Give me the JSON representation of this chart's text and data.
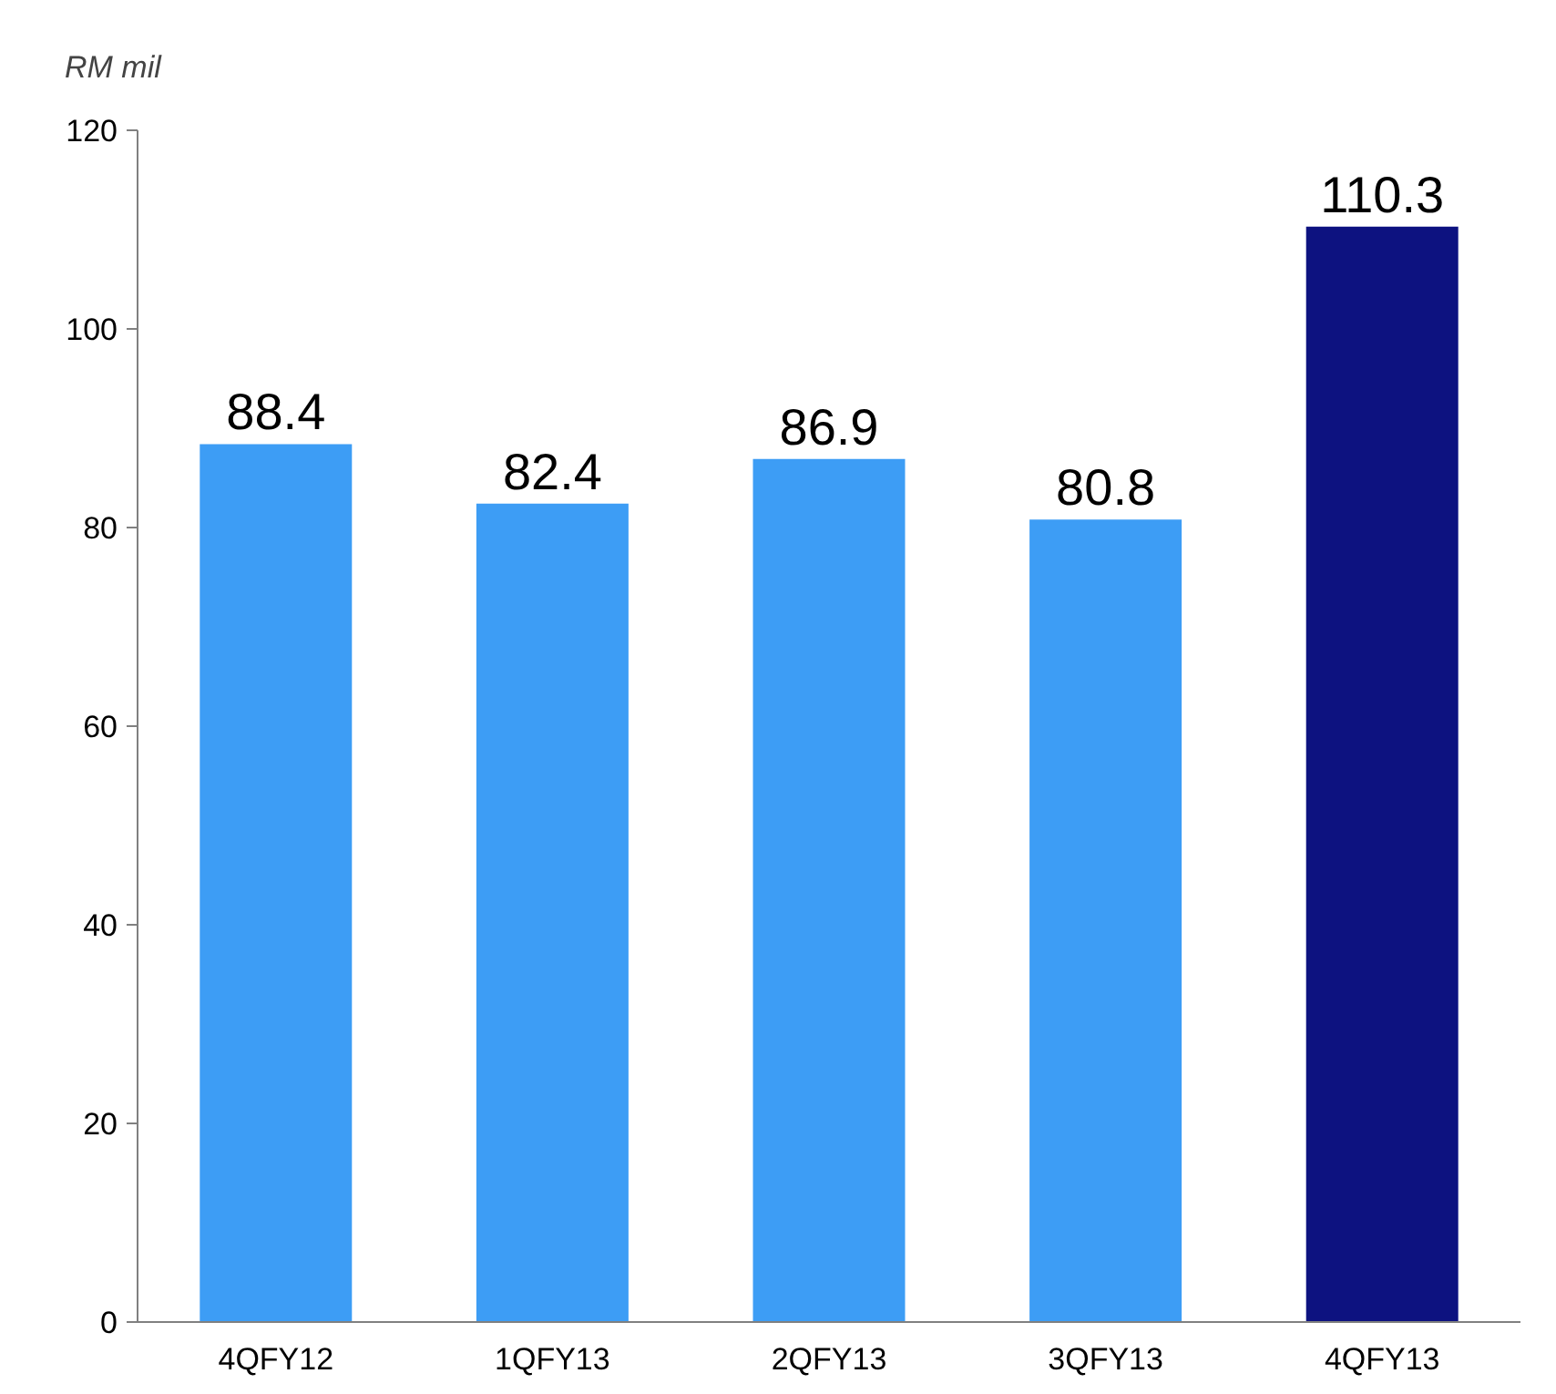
{
  "chart_data": {
    "type": "bar",
    "ylabel": "RM mil",
    "categories": [
      "4QFY12",
      "1QFY13",
      "2QFY13",
      "3QFY13",
      "4QFY13"
    ],
    "values": [
      88.4,
      82.4,
      86.9,
      80.8,
      110.3
    ],
    "colors": [
      "#3d9df5",
      "#3d9df5",
      "#3d9df5",
      "#3d9df5",
      "#0d1280"
    ],
    "ylim": [
      0,
      120
    ],
    "yticks": [
      0,
      20,
      40,
      60,
      80,
      100,
      120
    ],
    "data_labels": true,
    "grid": false
  }
}
